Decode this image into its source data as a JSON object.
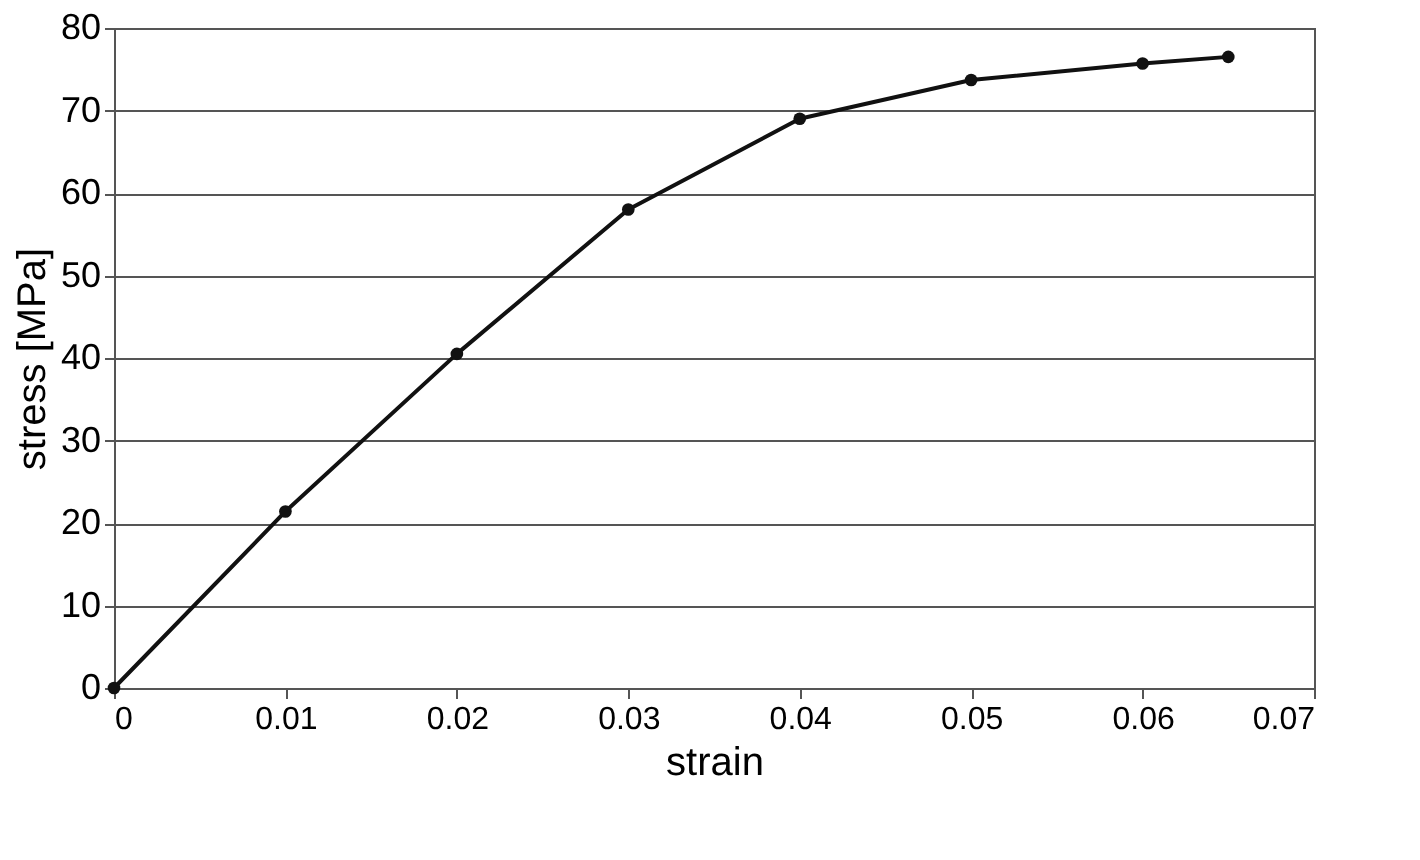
{
  "chart_data": {
    "type": "line",
    "xlabel": "strain",
    "ylabel": "stress [MPa]",
    "x": [
      0,
      0.01,
      0.02,
      0.03,
      0.04,
      0.05,
      0.06,
      0.065
    ],
    "series": [
      {
        "color": "#111111",
        "values": [
          0,
          21.4,
          40.5,
          58,
          69,
          73.7,
          75.7,
          76.5
        ]
      }
    ],
    "xlim": [
      0,
      0.07
    ],
    "xticks": [
      0,
      0.01,
      0.02,
      0.03,
      0.04,
      0.05,
      0.06,
      0.07
    ],
    "ylim": [
      0,
      80
    ],
    "yticks": [
      0,
      10,
      20,
      30,
      40,
      50,
      60,
      70,
      80
    ],
    "grid": "y",
    "marker": "circle",
    "line_style": "solid"
  }
}
